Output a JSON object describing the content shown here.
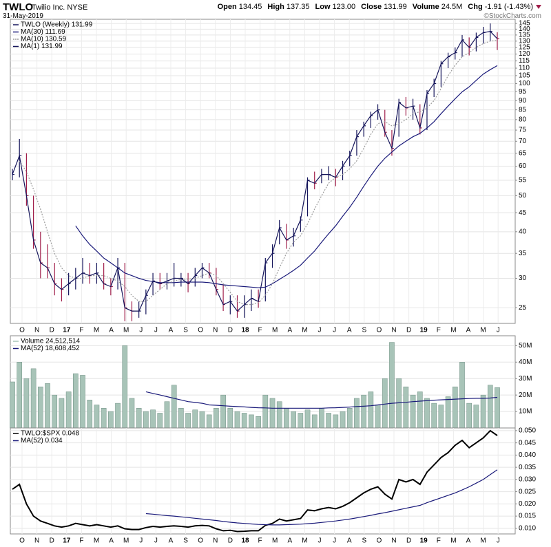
{
  "header": {
    "symbol": "TWLO",
    "name": "Twilio Inc. NYSE",
    "date": "31-May-2019",
    "credit": "©StockCharts.com",
    "quote": [
      {
        "label": "Open",
        "value": "134.45"
      },
      {
        "label": "High",
        "value": "137.35"
      },
      {
        "label": "Low",
        "value": "123.00"
      },
      {
        "label": "Close",
        "value": "131.99"
      },
      {
        "label": "Volume",
        "value": "24.5M"
      },
      {
        "label": "Chg",
        "value": "-1.91 (-1.43%)"
      }
    ]
  },
  "chart_data": [
    {
      "type": "ohlc",
      "log_scale": true,
      "grid": true,
      "legend": "top-left",
      "months": [
        "O",
        "N",
        "D",
        "17",
        "F",
        "M",
        "A",
        "M",
        "J",
        "J",
        "A",
        "S",
        "O",
        "N",
        "D",
        "18",
        "F",
        "M",
        "A",
        "M",
        "J",
        "J",
        "A",
        "S",
        "O",
        "N",
        "D",
        "19",
        "F",
        "M",
        "A",
        "M",
        "J"
      ],
      "ylim": [
        22.7,
        148.8
      ],
      "yticks": [
        25,
        30,
        35,
        40,
        45,
        50,
        55,
        60,
        65,
        70,
        75,
        80,
        85,
        90,
        95,
        100,
        105,
        110,
        115,
        120,
        125,
        130,
        135,
        140,
        145
      ],
      "series": [
        {
          "name": "TWLO (Weekly) 131.99",
          "type": "ohlc",
          "up_color": "#14145a",
          "down_color": "#a01e4a",
          "high": [
            59,
            71,
            65,
            50,
            40,
            37,
            33,
            30,
            31,
            32,
            34,
            33,
            33,
            33,
            30,
            34,
            33,
            26,
            26,
            28,
            31,
            31,
            31,
            33,
            31,
            31,
            32,
            33,
            33,
            32,
            29,
            27,
            27,
            27,
            28,
            28,
            34,
            37,
            43,
            42,
            41,
            44,
            56,
            58,
            59,
            60,
            59,
            62,
            66,
            75,
            79,
            84,
            88,
            85,
            75,
            91,
            92,
            91,
            88,
            96,
            103,
            115,
            121,
            125,
            135,
            133,
            137,
            142,
            145,
            137.35
          ],
          "low": [
            55,
            56,
            47,
            36,
            30,
            30,
            27,
            26,
            27,
            28,
            29,
            29,
            29,
            28,
            27,
            28,
            23,
            23,
            23.5,
            24,
            27,
            28,
            28,
            28.5,
            28.5,
            27.5,
            28.5,
            30,
            30,
            27,
            24.5,
            24,
            23.5,
            23.5,
            24.5,
            25,
            26,
            32,
            37,
            36,
            36.5,
            40,
            44,
            52,
            54,
            55,
            53,
            55,
            60,
            64,
            72,
            76,
            80,
            72,
            64,
            72,
            82,
            80,
            73,
            75,
            92,
            98,
            110,
            116,
            118,
            119,
            122,
            128,
            130,
            123
          ],
          "close": [
            57,
            64,
            50,
            38,
            33,
            32,
            29,
            28,
            29,
            30,
            31,
            30.5,
            31,
            29,
            28.5,
            32,
            25,
            24.5,
            24.5,
            27,
            29.5,
            29,
            29.5,
            30,
            30,
            29,
            30.5,
            32,
            31,
            28,
            25.5,
            26,
            24.5,
            25.5,
            26.5,
            26,
            33,
            35,
            41,
            38,
            39,
            43,
            55,
            54,
            57,
            57,
            56,
            60,
            64,
            72,
            77,
            82,
            85,
            74,
            67,
            89,
            86,
            87,
            76,
            94,
            100,
            113,
            118,
            121,
            131,
            125,
            133,
            137,
            138,
            131.99
          ]
        },
        {
          "name": "MA(30) 111.69",
          "type": "line",
          "color": "#1a1a7a",
          "values": [
            null,
            null,
            null,
            null,
            null,
            null,
            null,
            null,
            null,
            41.5,
            39,
            37,
            35.5,
            34,
            33,
            32,
            31,
            30.5,
            30,
            29.6,
            29.4,
            29.2,
            29.2,
            29.2,
            29.3,
            29.3,
            29.3,
            29.3,
            29.2,
            29,
            28.8,
            28.7,
            28.6,
            28.5,
            28.4,
            28.3,
            28.4,
            29,
            29.8,
            30.6,
            31.5,
            32.5,
            34,
            35.5,
            37.5,
            39.5,
            41.5,
            44,
            46.5,
            49.5,
            53,
            56.5,
            60,
            63,
            65.5,
            68,
            70,
            72,
            73.5,
            76,
            79,
            83,
            87,
            91,
            95,
            98,
            102,
            106,
            109,
            111.69
          ]
        },
        {
          "name": "MA(10) 130.59",
          "type": "line",
          "color": "#9a9a9a",
          "dash": true,
          "values": [
            null,
            62,
            58,
            52,
            46,
            40,
            35,
            32,
            30.5,
            30,
            30,
            30.5,
            30.5,
            30.5,
            30,
            29.5,
            28.5,
            27,
            26,
            26,
            27,
            28,
            29,
            29.5,
            29.8,
            29.8,
            30,
            30.5,
            31,
            30.5,
            29,
            27.5,
            26,
            25.5,
            25.5,
            25.8,
            27,
            29,
            32,
            35,
            37.5,
            39,
            42,
            46,
            50,
            54,
            56,
            57,
            59,
            62,
            67,
            73,
            78,
            79,
            77,
            78,
            80,
            83,
            84,
            86,
            90,
            97,
            105,
            112,
            118,
            121,
            125,
            128,
            130,
            130.59
          ]
        },
        {
          "name": "MA(1) 131.99",
          "type": "line",
          "color": "#14145a",
          "values": [
            57,
            64,
            50,
            38,
            33,
            32,
            29,
            28,
            29,
            30,
            31,
            30.5,
            31,
            29,
            28.5,
            32,
            25,
            24.5,
            24.5,
            27,
            29.5,
            29,
            29.5,
            30,
            30,
            29,
            30.5,
            32,
            31,
            28,
            25.5,
            26,
            24.5,
            25.5,
            26.5,
            26,
            33,
            35,
            41,
            38,
            39,
            43,
            55,
            54,
            57,
            57,
            56,
            60,
            64,
            72,
            77,
            82,
            85,
            74,
            67,
            89,
            86,
            87,
            76,
            94,
            100,
            113,
            118,
            121,
            131,
            125,
            133,
            137,
            138,
            131.99
          ]
        }
      ]
    },
    {
      "type": "bar",
      "grid": true,
      "legend": "top-left",
      "ylim": [
        0,
        56000000
      ],
      "yticks": [
        {
          "value": 10000000,
          "label": "10M"
        },
        {
          "value": 20000000,
          "label": "20M"
        },
        {
          "value": 30000000,
          "label": "30M"
        },
        {
          "value": 40000000,
          "label": "40M"
        },
        {
          "value": 50000000,
          "label": "50M"
        }
      ],
      "series": [
        {
          "name": "Volume 24,512,514",
          "type": "bar",
          "color": "#a8c4b8",
          "values": [
            28000000,
            40000000,
            30000000,
            36000000,
            25000000,
            27000000,
            20000000,
            18000000,
            22000000,
            33000000,
            32000000,
            17000000,
            14000000,
            12000000,
            10000000,
            15000000,
            50000000,
            18000000,
            12000000,
            10000000,
            11000000,
            9000000,
            16000000,
            26000000,
            12000000,
            9000000,
            11000000,
            10000000,
            8000000,
            12000000,
            20000000,
            12000000,
            10000000,
            9000000,
            8000000,
            7000000,
            20000000,
            18000000,
            16000000,
            12000000,
            10000000,
            9000000,
            11000000,
            8000000,
            12000000,
            9000000,
            8000000,
            10000000,
            12000000,
            18000000,
            20000000,
            22000000,
            14000000,
            30000000,
            52000000,
            30000000,
            25000000,
            20000000,
            22000000,
            18000000,
            15000000,
            14000000,
            19000000,
            25000000,
            40000000,
            15000000,
            14000000,
            20000000,
            26000000,
            24512514
          ]
        },
        {
          "name": "MA(52) 18,608,452",
          "type": "line",
          "color": "#1a1a7a",
          "values": [
            null,
            null,
            null,
            null,
            null,
            null,
            null,
            null,
            null,
            null,
            null,
            null,
            null,
            null,
            null,
            null,
            null,
            null,
            null,
            22000000,
            21000000,
            20000000,
            19000000,
            18000000,
            17000000,
            16000000,
            15500000,
            15000000,
            14000000,
            13800000,
            13500000,
            13200000,
            13000000,
            12800000,
            12500000,
            12300000,
            12200000,
            12000000,
            12000000,
            12000000,
            12000000,
            12000000,
            12000000,
            12000000,
            12000000,
            12200000,
            12300000,
            12500000,
            12700000,
            13000000,
            13200000,
            13500000,
            14000000,
            14500000,
            15000000,
            15300000,
            15600000,
            16000000,
            16300000,
            16600000,
            16900000,
            17100000,
            17300000,
            17500000,
            17700000,
            17900000,
            18000000,
            18000000,
            18200000,
            18608452
          ]
        }
      ]
    },
    {
      "type": "line",
      "grid": true,
      "legend": "top-left",
      "ylim": [
        0.0077,
        0.0511
      ],
      "months": [
        "O",
        "N",
        "D",
        "17",
        "F",
        "M",
        "A",
        "M",
        "J",
        "J",
        "A",
        "S",
        "O",
        "N",
        "D",
        "18",
        "F",
        "M",
        "A",
        "M",
        "J",
        "J",
        "A",
        "S",
        "O",
        "N",
        "D",
        "19",
        "F",
        "M",
        "A",
        "M",
        "J"
      ],
      "yticks": [
        {
          "value": 0.01,
          "label": "0.010"
        },
        {
          "value": 0.015,
          "label": "0.015"
        },
        {
          "value": 0.02,
          "label": "0.020"
        },
        {
          "value": 0.025,
          "label": "0.025"
        },
        {
          "value": 0.03,
          "label": "0.030"
        },
        {
          "value": 0.035,
          "label": "0.035"
        },
        {
          "value": 0.04,
          "label": "0.040"
        },
        {
          "value": 0.045,
          "label": "0.045"
        },
        {
          "value": 0.05,
          "label": "0.050"
        }
      ],
      "series": [
        {
          "name": "TWLO:$SPX 0.048",
          "type": "line",
          "color": "#000000",
          "width": 2,
          "values": [
            0.026,
            0.028,
            0.02,
            0.015,
            0.013,
            0.012,
            0.011,
            0.0105,
            0.011,
            0.012,
            0.0115,
            0.011,
            0.0115,
            0.011,
            0.0105,
            0.011,
            0.0098,
            0.0095,
            0.0095,
            0.0103,
            0.0108,
            0.0105,
            0.0108,
            0.011,
            0.0108,
            0.0105,
            0.011,
            0.0112,
            0.011,
            0.0098,
            0.009,
            0.0092,
            0.0087,
            0.0088,
            0.009,
            0.009,
            0.0112,
            0.012,
            0.0138,
            0.013,
            0.0135,
            0.014,
            0.0175,
            0.0172,
            0.018,
            0.0185,
            0.018,
            0.019,
            0.0205,
            0.0225,
            0.0245,
            0.026,
            0.027,
            0.024,
            0.022,
            0.03,
            0.029,
            0.03,
            0.028,
            0.033,
            0.036,
            0.039,
            0.041,
            0.044,
            0.046,
            0.043,
            0.045,
            0.047,
            0.05,
            0.048
          ]
        },
        {
          "name": "MA(52) 0.034",
          "type": "line",
          "color": "#1a1a7a",
          "values": [
            null,
            null,
            null,
            null,
            null,
            null,
            null,
            null,
            null,
            null,
            null,
            null,
            null,
            null,
            null,
            null,
            null,
            null,
            null,
            0.016,
            0.0158,
            0.0155,
            0.0152,
            0.015,
            0.0147,
            0.0144,
            0.0141,
            0.0138,
            0.0135,
            0.0132,
            0.0128,
            0.0125,
            0.0122,
            0.012,
            0.0118,
            0.0116,
            0.0115,
            0.0114,
            0.0114,
            0.0115,
            0.0116,
            0.0117,
            0.0119,
            0.0121,
            0.0124,
            0.0127,
            0.013,
            0.0134,
            0.0138,
            0.0143,
            0.0148,
            0.0153,
            0.0159,
            0.0164,
            0.017,
            0.0176,
            0.0182,
            0.0188,
            0.0194,
            0.0205,
            0.0215,
            0.0225,
            0.0235,
            0.0245,
            0.0257,
            0.027,
            0.0285,
            0.03,
            0.032,
            0.034
          ]
        }
      ]
    }
  ]
}
